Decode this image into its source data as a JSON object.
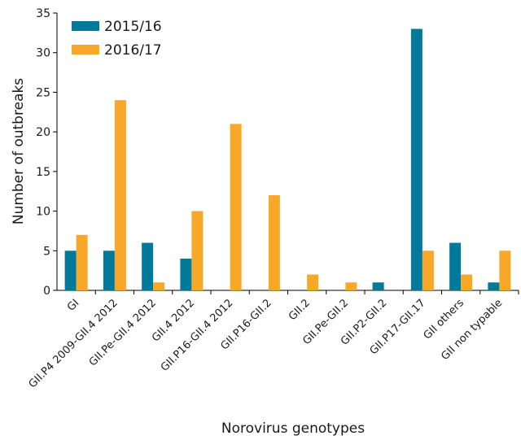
{
  "chart_data": {
    "type": "bar",
    "categories": [
      "GI",
      "GII.P4 2009-GII.4 2012",
      "GII.Pe-GII.4 2012",
      "GII.4 2012",
      "GII.P16-GII.4 2012",
      "GII.P16-GII.2",
      "GII.2",
      "GII.Pe-GII.2",
      "GII.P2-GII.2",
      "GII.P17-GII.17",
      "GII others",
      "GII non typable"
    ],
    "series": [
      {
        "name": "2015/16",
        "color": "#00799a",
        "values": [
          5,
          5,
          6,
          4,
          0,
          0,
          0,
          0,
          1,
          33,
          6,
          1
        ]
      },
      {
        "name": "2016/17",
        "color": "#f8a828",
        "values": [
          7,
          24,
          1,
          10,
          21,
          12,
          2,
          1,
          0,
          5,
          2,
          5
        ]
      }
    ],
    "title": "",
    "xlabel": "Norovirus genotypes",
    "ylabel": "Number of outbreaks",
    "ylim": [
      0,
      35
    ],
    "yticks": [
      "0",
      "5",
      "10",
      "15",
      "20",
      "25",
      "30",
      "35"
    ],
    "legend": "top-left",
    "grid": false
  }
}
